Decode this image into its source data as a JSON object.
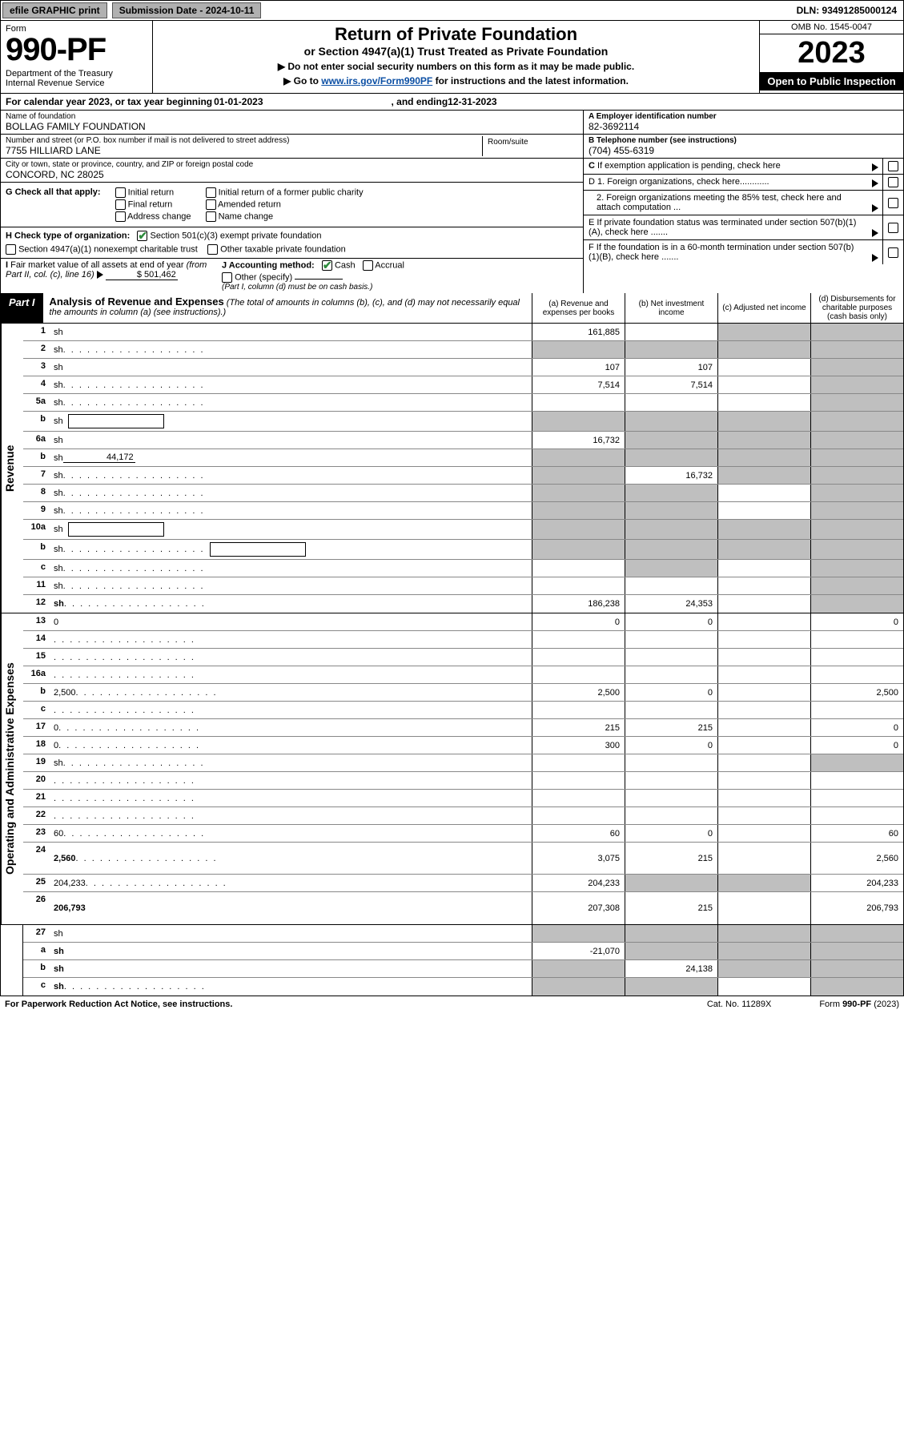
{
  "top": {
    "efile": "efile GRAPHIC print",
    "sub_label": "Submission Date - ",
    "sub_date": "2024-10-11",
    "dln": "DLN: 93491285000124"
  },
  "header": {
    "form_word": "Form",
    "form_num": "990-PF",
    "dept": "Department of the Treasury\nInternal Revenue Service",
    "title": "Return of Private Foundation",
    "subtitle": "or Section 4947(a)(1) Trust Treated as Private Foundation",
    "note1": "▶ Do not enter social security numbers on this form as it may be made public.",
    "note2_pre": "▶ Go to ",
    "note2_link": "www.irs.gov/Form990PF",
    "note2_post": " for instructions and the latest information.",
    "omb": "OMB No. 1545-0047",
    "year": "2023",
    "open": "Open to Public Inspection"
  },
  "calendar": {
    "lead": "For calendar year 2023, or tax year beginning ",
    "begin": "01-01-2023",
    "mid": ", and ending ",
    "end": "12-31-2023"
  },
  "id": {
    "name_label": "Name of foundation",
    "name": "BOLLAG FAMILY FOUNDATION",
    "addr_label": "Number and street (or P.O. box number if mail is not delivered to street address)",
    "addr": "7755 HILLIARD LANE",
    "room_label": "Room/suite",
    "city_label": "City or town, state or province, country, and ZIP or foreign postal code",
    "city": "CONCORD, NC  28025",
    "a_label": "A Employer identification number",
    "a_val": "82-3692114",
    "b_label": "B Telephone number (see instructions)",
    "b_val": "(704) 455-6319",
    "c_label": "C If exemption application is pending, check here",
    "d1_label": "D 1. Foreign organizations, check here............",
    "d2_label": "2. Foreign organizations meeting the 85% test, check here and attach computation ...",
    "e_label": "E  If private foundation status was terminated under section 507(b)(1)(A), check here .......",
    "f_label": "F  If the foundation is in a 60-month termination under section 507(b)(1)(B), check here .......",
    "g_label": "G Check all that apply:",
    "g_opts": [
      "Initial return",
      "Final return",
      "Address change",
      "Initial return of a former public charity",
      "Amended return",
      "Name change"
    ],
    "h_label": "H Check type of organization:",
    "h_501c3": "Section 501(c)(3) exempt private foundation",
    "h_4947": "Section 4947(a)(1) nonexempt charitable trust",
    "h_other": "Other taxable private foundation",
    "i_label": "I Fair market value of all assets at end of year (from Part II, col. (c), line 16)",
    "i_val": "$  501,462",
    "j_label": "J Accounting method:",
    "j_cash": "Cash",
    "j_accrual": "Accrual",
    "j_other": "Other (specify)",
    "j_note": "(Part I, column (d) must be on cash basis.)"
  },
  "part1": {
    "tag": "Part I",
    "title": "Analysis of Revenue and Expenses",
    "title_note": "(The total of amounts in columns (b), (c), and (d) may not necessarily equal the amounts in column (a) (see instructions).)",
    "col_a": "(a)   Revenue and expenses per books",
    "col_b": "(b)   Net investment income",
    "col_c": "(c)   Adjusted net income",
    "col_d": "(d)   Disbursements for charitable purposes (cash basis only)"
  },
  "sections": {
    "revenue": "Revenue",
    "opex": "Operating and Administrative Expenses"
  },
  "rows": [
    {
      "n": "1",
      "d": "sh",
      "a": "161,885",
      "b": "",
      "c": "sh"
    },
    {
      "n": "2",
      "d": "sh",
      "dots": true,
      "a": "sh",
      "b": "sh",
      "c": "sh"
    },
    {
      "n": "3",
      "d": "sh",
      "a": "107",
      "b": "107",
      "c": ""
    },
    {
      "n": "4",
      "d": "sh",
      "dots": true,
      "a": "7,514",
      "b": "7,514",
      "c": ""
    },
    {
      "n": "5a",
      "d": "sh",
      "dots": true,
      "a": "",
      "b": "",
      "c": ""
    },
    {
      "n": "b",
      "d": "sh",
      "inset": true,
      "a": "sh",
      "b": "sh",
      "c": "sh"
    },
    {
      "n": "6a",
      "d": "sh",
      "a": "16,732",
      "b": "sh",
      "c": "sh"
    },
    {
      "n": "b",
      "d": "sh",
      "inline": "44,172",
      "a": "sh",
      "b": "sh",
      "c": "sh"
    },
    {
      "n": "7",
      "d": "sh",
      "dots": true,
      "a": "sh",
      "b": "16,732",
      "c": "sh"
    },
    {
      "n": "8",
      "d": "sh",
      "dots": true,
      "a": "sh",
      "b": "sh",
      "c": ""
    },
    {
      "n": "9",
      "d": "sh",
      "dots": true,
      "a": "sh",
      "b": "sh",
      "c": ""
    },
    {
      "n": "10a",
      "d": "sh",
      "inset": true,
      "a": "sh",
      "b": "sh",
      "c": "sh"
    },
    {
      "n": "b",
      "d": "sh",
      "dots": true,
      "inset": true,
      "a": "sh",
      "b": "sh",
      "c": "sh"
    },
    {
      "n": "c",
      "d": "sh",
      "dots": true,
      "a": "",
      "b": "sh",
      "c": ""
    },
    {
      "n": "11",
      "d": "sh",
      "dots": true,
      "a": "",
      "b": "",
      "c": ""
    },
    {
      "n": "12",
      "d": "sh",
      "dots": true,
      "bold": true,
      "a": "186,238",
      "b": "24,353",
      "c": ""
    }
  ],
  "rows2": [
    {
      "n": "13",
      "d": "0",
      "a": "0",
      "b": "0",
      "c": ""
    },
    {
      "n": "14",
      "d": "",
      "dots": true,
      "a": "",
      "b": "",
      "c": ""
    },
    {
      "n": "15",
      "d": "",
      "dots": true,
      "a": "",
      "b": "",
      "c": ""
    },
    {
      "n": "16a",
      "d": "",
      "dots": true,
      "a": "",
      "b": "",
      "c": ""
    },
    {
      "n": "b",
      "d": "2,500",
      "dots": true,
      "a": "2,500",
      "b": "0",
      "c": ""
    },
    {
      "n": "c",
      "d": "",
      "dots": true,
      "a": "",
      "b": "",
      "c": ""
    },
    {
      "n": "17",
      "d": "0",
      "dots": true,
      "a": "215",
      "b": "215",
      "c": ""
    },
    {
      "n": "18",
      "d": "0",
      "dots": true,
      "a": "300",
      "b": "0",
      "c": ""
    },
    {
      "n": "19",
      "d": "sh",
      "dots": true,
      "a": "",
      "b": "",
      "c": ""
    },
    {
      "n": "20",
      "d": "",
      "dots": true,
      "a": "",
      "b": "",
      "c": ""
    },
    {
      "n": "21",
      "d": "",
      "dots": true,
      "a": "",
      "b": "",
      "c": ""
    },
    {
      "n": "22",
      "d": "",
      "dots": true,
      "a": "",
      "b": "",
      "c": ""
    },
    {
      "n": "23",
      "d": "60",
      "dots": true,
      "a": "60",
      "b": "0",
      "c": ""
    },
    {
      "n": "24",
      "d": "2,560",
      "dots": true,
      "bold": true,
      "a": "3,075",
      "b": "215",
      "c": "",
      "tall": true
    },
    {
      "n": "25",
      "d": "204,233",
      "dots": true,
      "a": "204,233",
      "b": "sh",
      "c": "sh"
    },
    {
      "n": "26",
      "d": "206,793",
      "bold": true,
      "a": "207,308",
      "b": "215",
      "c": "",
      "tall": true
    }
  ],
  "rows3": [
    {
      "n": "27",
      "d": "sh",
      "a": "sh",
      "b": "sh",
      "c": "sh"
    },
    {
      "n": "a",
      "d": "sh",
      "bold": true,
      "a": "-21,070",
      "b": "sh",
      "c": "sh"
    },
    {
      "n": "b",
      "d": "sh",
      "bold": true,
      "a": "sh",
      "b": "24,138",
      "c": "sh"
    },
    {
      "n": "c",
      "d": "sh",
      "dots": true,
      "bold": true,
      "a": "sh",
      "b": "sh",
      "c": ""
    }
  ],
  "footer": {
    "left": "For Paperwork Reduction Act Notice, see instructions.",
    "mid": "Cat. No. 11289X",
    "right": "Form 990-PF (2023)"
  },
  "colors": {
    "shade": "#bfbfbf"
  }
}
